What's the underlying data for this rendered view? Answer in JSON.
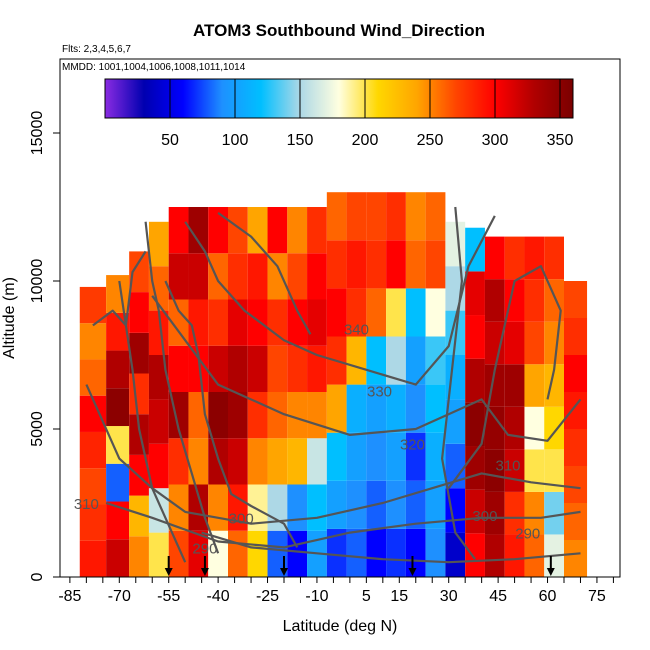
{
  "chart_data": {
    "type": "heatmap",
    "title": "ATOM3 Southbound Wind_Direction",
    "subtitle_flights": "Flts: 2,3,4,5,6,7",
    "subtitle_dates": "MMDD: 1001,1004,1006,1008,1011,1014",
    "xlabel": "Latitude (deg N)",
    "ylabel": "Altitude (m)",
    "xlim": [
      -88,
      82
    ],
    "ylim": [
      0,
      17500
    ],
    "x_ticks": [
      -85,
      -70,
      -55,
      -40,
      -25,
      -10,
      5,
      15,
      30,
      45,
      60,
      75
    ],
    "y_ticks": [
      0,
      5000,
      10000,
      15000
    ],
    "colorbar": {
      "ticks": [
        50,
        100,
        150,
        200,
        250,
        300,
        350
      ],
      "range": [
        0,
        360
      ],
      "colors": [
        "#8a2be2",
        "#0000b0",
        "#0000ff",
        "#1e90ff",
        "#00bfff",
        "#add8e6",
        "#ffffe0",
        "#ffd700",
        "#ffa500",
        "#ff4500",
        "#ff0000",
        "#b00000",
        "#7a0000"
      ]
    },
    "heat_columns": [
      {
        "x": -78,
        "top": 9800,
        "values": [
          290,
          280,
          270,
          285,
          300,
          260,
          250,
          275
        ]
      },
      {
        "x": -70,
        "top": 10200,
        "values": [
          320,
          300,
          80,
          200,
          350,
          330,
          290,
          250
        ]
      },
      {
        "x": -64,
        "top": 11000,
        "values": [
          250,
          230,
          300,
          330,
          280,
          340,
          300,
          270
        ]
      },
      {
        "x": -58,
        "top": 12000,
        "values": [
          200,
          160,
          300,
          320,
          330,
          290,
          260,
          240
        ]
      },
      {
        "x": -52,
        "top": 12500,
        "values": [
          270,
          250,
          280,
          340,
          300,
          260,
          320,
          300
        ]
      },
      {
        "x": -46,
        "top": 12500,
        "values": [
          310,
          330,
          250,
          260,
          300,
          290,
          320,
          340
        ]
      },
      {
        "x": -40,
        "top": 12500,
        "values": [
          180,
          250,
          330,
          350,
          320,
          280,
          260,
          300
        ]
      },
      {
        "x": -34,
        "top": 12500,
        "values": [
          260,
          290,
          320,
          340,
          330,
          310,
          280,
          270
        ]
      },
      {
        "x": -28,
        "top": 12500,
        "values": [
          210,
          190,
          250,
          280,
          320,
          300,
          290,
          240
        ]
      },
      {
        "x": -22,
        "top": 12500,
        "values": [
          80,
          150,
          240,
          260,
          270,
          280,
          250,
          300
        ]
      },
      {
        "x": -16,
        "top": 12500,
        "values": [
          60,
          90,
          230,
          250,
          280,
          300,
          270,
          250
        ]
      },
      {
        "x": -10,
        "top": 12500,
        "values": [
          100,
          120,
          160,
          250,
          290,
          310,
          300,
          280
        ]
      },
      {
        "x": -4,
        "top": 13000,
        "values": [
          70,
          100,
          120,
          240,
          280,
          300,
          280,
          260
        ]
      },
      {
        "x": 2,
        "top": 13000,
        "values": [
          80,
          90,
          100,
          110,
          230,
          280,
          290,
          270
        ]
      },
      {
        "x": 8,
        "top": 13000,
        "values": [
          60,
          80,
          90,
          100,
          120,
          260,
          280,
          270
        ]
      },
      {
        "x": 14,
        "top": 13000,
        "values": [
          70,
          90,
          100,
          110,
          150,
          200,
          300,
          280
        ]
      },
      {
        "x": 20,
        "top": 13000,
        "values": [
          60,
          80,
          70,
          90,
          100,
          120,
          260,
          250
        ]
      },
      {
        "x": 26,
        "top": 13000,
        "values": [
          90,
          100,
          110,
          120,
          130,
          180,
          270,
          260
        ]
      },
      {
        "x": 32,
        "top": 12000,
        "values": [
          40,
          60,
          80,
          100,
          110,
          130,
          150,
          170
        ]
      },
      {
        "x": 38,
        "top": 11800,
        "values": [
          300,
          320,
          340,
          350,
          330,
          300,
          310,
          120
        ]
      },
      {
        "x": 44,
        "top": 11500,
        "values": [
          330,
          340,
          350,
          345,
          340,
          320,
          330,
          300
        ]
      },
      {
        "x": 50,
        "top": 11500,
        "values": [
          290,
          280,
          320,
          330,
          340,
          310,
          300,
          280
        ]
      },
      {
        "x": 56,
        "top": 11500,
        "values": [
          260,
          250,
          200,
          180,
          240,
          270,
          280,
          290
        ]
      },
      {
        "x": 62,
        "top": 11500,
        "values": [
          170,
          140,
          200,
          210,
          230,
          250,
          260,
          280
        ]
      },
      {
        "x": 68,
        "top": 10000,
        "values": [
          250,
          260,
          270,
          280,
          290,
          300,
          280,
          270
        ]
      }
    ],
    "contour_labels": [
      {
        "text": "340",
        "x": 2,
        "y": 8200
      },
      {
        "text": "330",
        "x": 9,
        "y": 6100
      },
      {
        "text": "320",
        "x": 19,
        "y": 4300
      },
      {
        "text": "310",
        "x": 48,
        "y": 3600
      },
      {
        "text": "300",
        "x": 41,
        "y": 1900
      },
      {
        "text": "290",
        "x": 54,
        "y": 1300
      },
      {
        "text": "290",
        "x": -44,
        "y": 800
      },
      {
        "text": "300",
        "x": -33,
        "y": 1800
      },
      {
        "text": "310",
        "x": -80,
        "y": 2300
      }
    ],
    "contours": [
      [
        [
          -62,
          12000
        ],
        [
          -60,
          10000
        ],
        [
          -58,
          9000
        ],
        [
          -56,
          7000
        ],
        [
          -52,
          5000
        ],
        [
          -48,
          3500
        ],
        [
          -44,
          2000
        ],
        [
          -40,
          800
        ]
      ],
      [
        [
          -50,
          12000
        ],
        [
          -44,
          11000
        ],
        [
          -40,
          10000
        ],
        [
          -32,
          9000
        ],
        [
          -20,
          8000
        ],
        [
          -10,
          7500
        ],
        [
          5,
          7000
        ],
        [
          20,
          6500
        ],
        [
          30,
          7800
        ],
        [
          36,
          10500
        ],
        [
          44,
          12200
        ]
      ],
      [
        [
          -70,
          10000
        ],
        [
          -66,
          7000
        ],
        [
          -64,
          5000
        ],
        [
          -60,
          3000
        ],
        [
          -54,
          1500
        ],
        [
          -50,
          500
        ]
      ],
      [
        [
          -40,
          12300
        ],
        [
          -30,
          11500
        ],
        [
          -22,
          10500
        ],
        [
          -16,
          9000
        ],
        [
          -12,
          8200
        ]
      ],
      [
        [
          -80,
          6500
        ],
        [
          -70,
          4000
        ],
        [
          -60,
          3000
        ],
        [
          -50,
          2200
        ],
        [
          -30,
          1800
        ],
        [
          -10,
          2000
        ],
        [
          10,
          2500
        ],
        [
          25,
          3000
        ],
        [
          40,
          3500
        ],
        [
          55,
          3200
        ],
        [
          70,
          3000
        ]
      ],
      [
        [
          -60,
          9500
        ],
        [
          -40,
          6500
        ],
        [
          -20,
          5500
        ],
        [
          0,
          4800
        ],
        [
          20,
          5000
        ],
        [
          40,
          6000
        ],
        [
          48,
          4800
        ],
        [
          60,
          4600
        ],
        [
          70,
          6000
        ]
      ],
      [
        [
          -74,
          2500
        ],
        [
          -60,
          2000
        ],
        [
          -40,
          1200
        ],
        [
          -20,
          1000
        ],
        [
          0,
          1500
        ],
        [
          20,
          1800
        ],
        [
          40,
          2000
        ],
        [
          58,
          2000
        ],
        [
          70,
          2200
        ]
      ],
      [
        [
          30,
          3000
        ],
        [
          40,
          4500
        ],
        [
          44,
          7000
        ],
        [
          50,
          10000
        ],
        [
          58,
          10500
        ],
        [
          64,
          9000
        ],
        [
          62,
          7000
        ],
        [
          60,
          6000
        ]
      ],
      [
        [
          32,
          12500
        ],
        [
          34,
          10000
        ],
        [
          32,
          8000
        ],
        [
          30,
          6000
        ],
        [
          28,
          4000
        ],
        [
          32,
          1500
        ],
        [
          38,
          600
        ]
      ],
      [
        [
          -45,
          1500
        ],
        [
          -30,
          1000
        ],
        [
          -10,
          800
        ],
        [
          10,
          600
        ],
        [
          30,
          500
        ],
        [
          50,
          600
        ],
        [
          70,
          800
        ]
      ],
      [
        [
          -78,
          8500
        ],
        [
          -72,
          9000
        ],
        [
          -68,
          8500
        ],
        [
          -66,
          10300
        ],
        [
          -62,
          11000
        ]
      ],
      [
        [
          -56,
          10000
        ],
        [
          -52,
          9000
        ],
        [
          -48,
          8500
        ],
        [
          -46,
          7500
        ],
        [
          -44,
          5500
        ],
        [
          -40,
          4000
        ],
        [
          -36,
          2800
        ],
        [
          -30,
          2400
        ],
        [
          -20,
          1800
        ],
        [
          -16,
          1000
        ]
      ]
    ],
    "flight_arrows": [
      -55,
      -44,
      -20,
      19,
      61
    ]
  }
}
